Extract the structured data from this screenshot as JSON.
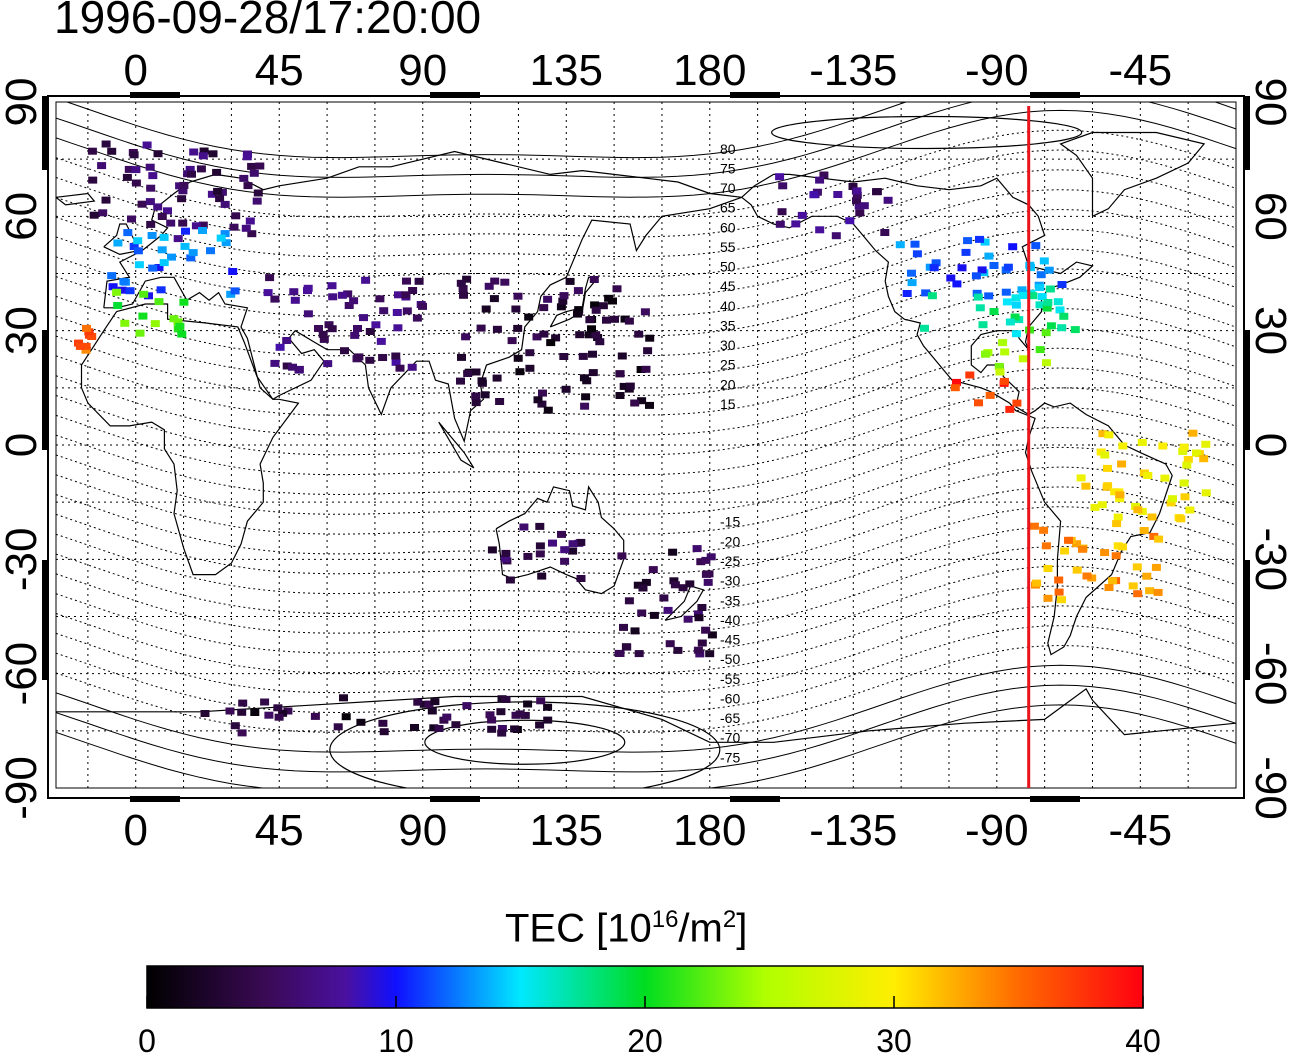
{
  "title": "1996-09-28/17:20:00",
  "map": {
    "lon_range": [
      -25,
      345
    ],
    "lat_range": [
      -90,
      90
    ],
    "top_ticks": [
      "0",
      "45",
      "90",
      "135",
      "180",
      "-135",
      "-90",
      "-45"
    ],
    "bottom_ticks": [
      "0",
      "45",
      "90",
      "135",
      "180",
      "-135",
      "-90",
      "-45"
    ],
    "left_ticks": [
      "90",
      "60",
      "30",
      "0",
      "-30",
      "-60",
      "-90"
    ],
    "right_ticks": [
      "90",
      "60",
      "30",
      "0",
      "-30",
      "-60",
      "-90"
    ],
    "tick_lon_values": [
      0,
      45,
      90,
      135,
      180,
      225,
      270,
      315
    ],
    "tick_lat_values": [
      90,
      60,
      30,
      0,
      -30,
      -60,
      -90
    ],
    "magnetic_latitude_labels": [
      "80",
      "75",
      "70",
      "65",
      "60",
      "55",
      "50",
      "45",
      "40",
      "35",
      "30",
      "25",
      "20",
      "15",
      "-15",
      "-20",
      "-25",
      "-30",
      "-35",
      "-40",
      "-45",
      "-50",
      "-55",
      "-60",
      "-65",
      "-70",
      "-75"
    ],
    "terminator_longitude": -80,
    "terminator_color": "#e8141e",
    "grid": "dotted"
  },
  "colorbar": {
    "label_main": "TEC  [10",
    "label_exp": "16",
    "label_mid": "/m",
    "label_exp2": "2",
    "label_end": "]",
    "min": 0,
    "max": 40,
    "ticks": [
      "0",
      "10",
      "20",
      "30",
      "40"
    ],
    "colormap": "jet-like: black→purple→blue→cyan→green→yellow→red"
  },
  "chart_data": {
    "type": "heatmap",
    "title": "1996-09-28/17:20:00",
    "xlabel": "",
    "ylabel": "",
    "xlim": [
      -25,
      345
    ],
    "ylim": [
      -90,
      90
    ],
    "value_range": [
      0,
      40
    ],
    "regions": [
      {
        "lon": [
          -15,
          40
        ],
        "lat": [
          55,
          80
        ],
        "tec": 5
      },
      {
        "lon": [
          -10,
          30
        ],
        "lat": [
          40,
          58
        ],
        "tec": 12
      },
      {
        "lon": [
          -10,
          15
        ],
        "lat": [
          30,
          42
        ],
        "tec": 22
      },
      {
        "lon": [
          -20,
          -15
        ],
        "lat": [
          25,
          33
        ],
        "tec": 36
      },
      {
        "lon": [
          40,
          90
        ],
        "lat": [
          20,
          45
        ],
        "tec": 6
      },
      {
        "lon": [
          100,
          160
        ],
        "lat": [
          10,
          45
        ],
        "tec": 3
      },
      {
        "lon": [
          110,
          140
        ],
        "lat": [
          -35,
          -20
        ],
        "tec": 5
      },
      {
        "lon": [
          150,
          180
        ],
        "lat": [
          -55,
          -25
        ],
        "tec": 4
      },
      {
        "lon": [
          200,
          235
        ],
        "lat": [
          55,
          72
        ],
        "tec": 6
      },
      {
        "lon": [
          235,
          290
        ],
        "lat": [
          40,
          55
        ],
        "tec": 12
      },
      {
        "lon": [
          245,
          295
        ],
        "lat": [
          30,
          42
        ],
        "tec": 17
      },
      {
        "lon": [
          265,
          285
        ],
        "lat": [
          20,
          32
        ],
        "tec": 24
      },
      {
        "lon": [
          255,
          275
        ],
        "lat": [
          10,
          20
        ],
        "tec": 37
      },
      {
        "lon": [
          280,
          320
        ],
        "lat": [
          -40,
          -20
        ],
        "tec": 33
      },
      {
        "lon": [
          295,
          335
        ],
        "lat": [
          -20,
          5
        ],
        "tec": 30
      },
      {
        "lon": [
          20,
          130
        ],
        "lat": [
          -75,
          -65
        ],
        "tec": 3
      }
    ]
  }
}
